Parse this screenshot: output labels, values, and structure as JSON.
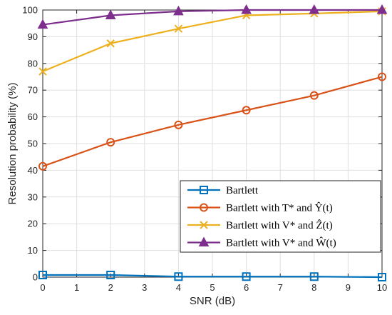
{
  "chart_data": {
    "type": "line",
    "xlabel": "SNR (dB)",
    "ylabel": "Resolution probability (%)",
    "xlim": [
      0,
      10
    ],
    "ylim": [
      0,
      100
    ],
    "xticks": [
      "0",
      "1",
      "2",
      "3",
      "4",
      "5",
      "6",
      "7",
      "8",
      "9",
      "10"
    ],
    "yticks": [
      "0",
      "10",
      "20",
      "30",
      "40",
      "50",
      "60",
      "70",
      "80",
      "90",
      "100"
    ],
    "grid": true,
    "legend_position": "bottom-right",
    "x": [
      0,
      2,
      4,
      6,
      8,
      10
    ],
    "series": [
      {
        "name": "Bartlett",
        "color": "#0072BD",
        "marker": "square",
        "values": [
          0.8,
          0.8,
          0.2,
          0.2,
          0.2,
          0.0
        ]
      },
      {
        "name": "Bartlett with T* and Ŷ(t)",
        "color": "#D95319",
        "marker": "circle",
        "values": [
          41.5,
          50.5,
          57,
          62.5,
          68,
          75
        ]
      },
      {
        "name": "Bartlett with V* and Ẑ(t)",
        "color": "#EDB120",
        "marker": "x",
        "values": [
          77,
          87.5,
          93,
          98,
          98.7,
          99.5
        ]
      },
      {
        "name": "Bartlett with V* and Ŵ(t)",
        "color": "#7E2F8E",
        "marker": "triangle",
        "values": [
          94.5,
          98,
          99.5,
          100,
          100,
          100
        ]
      }
    ]
  }
}
